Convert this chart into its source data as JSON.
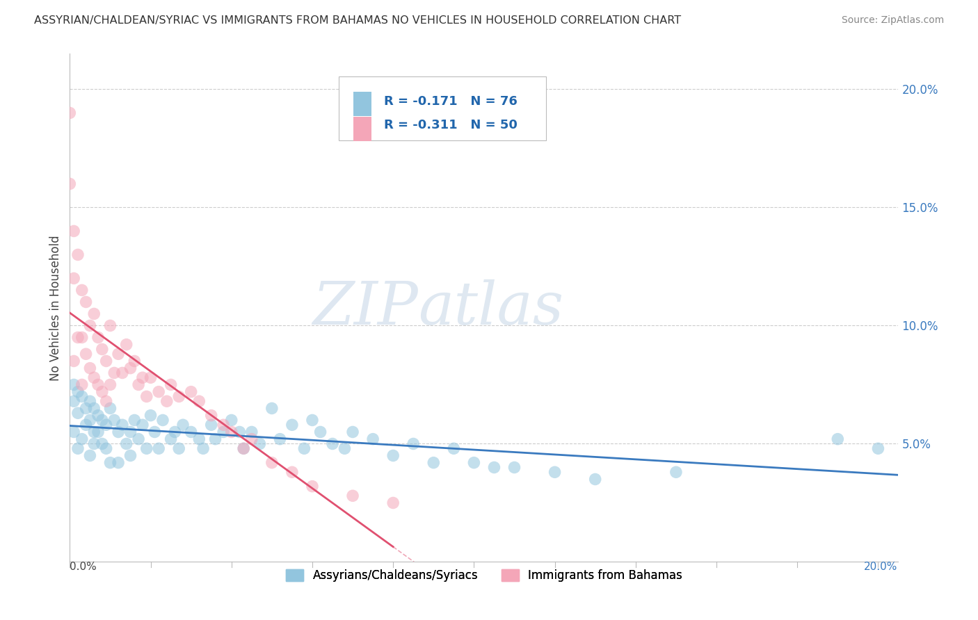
{
  "title": "ASSYRIAN/CHALDEAN/SYRIAC VS IMMIGRANTS FROM BAHAMAS NO VEHICLES IN HOUSEHOLD CORRELATION CHART",
  "source": "Source: ZipAtlas.com",
  "ylabel": "No Vehicles in Household",
  "yaxis_labels": [
    "20.0%",
    "15.0%",
    "10.0%",
    "5.0%"
  ],
  "yaxis_values": [
    0.2,
    0.15,
    0.1,
    0.05
  ],
  "legend_blue_r": "-0.171",
  "legend_blue_n": "76",
  "legend_pink_r": "-0.311",
  "legend_pink_n": "50",
  "blue_color": "#92c5de",
  "pink_color": "#f4a6b8",
  "blue_line_color": "#3a7abf",
  "pink_line_color": "#e05070",
  "watermark_zip": "ZIP",
  "watermark_atlas": "atlas",
  "xlabel_label_blue": "Assyrians/Chaldeans/Syriacs",
  "xlabel_label_pink": "Immigrants from Bahamas",
  "blue_scatter_x": [
    0.001,
    0.001,
    0.001,
    0.002,
    0.002,
    0.002,
    0.003,
    0.003,
    0.004,
    0.004,
    0.005,
    0.005,
    0.005,
    0.006,
    0.006,
    0.006,
    0.007,
    0.007,
    0.008,
    0.008,
    0.009,
    0.009,
    0.01,
    0.01,
    0.011,
    0.012,
    0.012,
    0.013,
    0.014,
    0.015,
    0.015,
    0.016,
    0.017,
    0.018,
    0.019,
    0.02,
    0.021,
    0.022,
    0.023,
    0.025,
    0.026,
    0.027,
    0.028,
    0.03,
    0.032,
    0.033,
    0.035,
    0.036,
    0.038,
    0.04,
    0.042,
    0.043,
    0.045,
    0.047,
    0.05,
    0.052,
    0.055,
    0.058,
    0.06,
    0.062,
    0.065,
    0.068,
    0.07,
    0.075,
    0.08,
    0.085,
    0.09,
    0.095,
    0.1,
    0.105,
    0.11,
    0.12,
    0.13,
    0.15,
    0.19,
    0.2
  ],
  "blue_scatter_y": [
    0.075,
    0.068,
    0.055,
    0.072,
    0.063,
    0.048,
    0.07,
    0.052,
    0.065,
    0.058,
    0.068,
    0.06,
    0.045,
    0.065,
    0.055,
    0.05,
    0.062,
    0.055,
    0.06,
    0.05,
    0.058,
    0.048,
    0.065,
    0.042,
    0.06,
    0.055,
    0.042,
    0.058,
    0.05,
    0.055,
    0.045,
    0.06,
    0.052,
    0.058,
    0.048,
    0.062,
    0.055,
    0.048,
    0.06,
    0.052,
    0.055,
    0.048,
    0.058,
    0.055,
    0.052,
    0.048,
    0.058,
    0.052,
    0.055,
    0.06,
    0.055,
    0.048,
    0.055,
    0.05,
    0.065,
    0.052,
    0.058,
    0.048,
    0.06,
    0.055,
    0.05,
    0.048,
    0.055,
    0.052,
    0.045,
    0.05,
    0.042,
    0.048,
    0.042,
    0.04,
    0.04,
    0.038,
    0.035,
    0.038,
    0.052,
    0.048
  ],
  "pink_scatter_x": [
    0.0,
    0.0,
    0.001,
    0.001,
    0.001,
    0.002,
    0.002,
    0.003,
    0.003,
    0.003,
    0.004,
    0.004,
    0.005,
    0.005,
    0.006,
    0.006,
    0.007,
    0.007,
    0.008,
    0.008,
    0.009,
    0.009,
    0.01,
    0.01,
    0.011,
    0.012,
    0.013,
    0.014,
    0.015,
    0.016,
    0.017,
    0.018,
    0.019,
    0.02,
    0.022,
    0.024,
    0.025,
    0.027,
    0.03,
    0.032,
    0.035,
    0.038,
    0.04,
    0.043,
    0.045,
    0.05,
    0.055,
    0.06,
    0.07,
    0.08
  ],
  "pink_scatter_y": [
    0.19,
    0.16,
    0.14,
    0.12,
    0.085,
    0.13,
    0.095,
    0.115,
    0.095,
    0.075,
    0.11,
    0.088,
    0.1,
    0.082,
    0.105,
    0.078,
    0.095,
    0.075,
    0.09,
    0.072,
    0.085,
    0.068,
    0.1,
    0.075,
    0.08,
    0.088,
    0.08,
    0.092,
    0.082,
    0.085,
    0.075,
    0.078,
    0.07,
    0.078,
    0.072,
    0.068,
    0.075,
    0.07,
    0.072,
    0.068,
    0.062,
    0.058,
    0.055,
    0.048,
    0.052,
    0.042,
    0.038,
    0.032,
    0.028,
    0.025
  ],
  "xlim": [
    0.0,
    0.205
  ],
  "ylim": [
    0.0,
    0.215
  ],
  "figsize": [
    14.06,
    8.92
  ],
  "dpi": 100
}
